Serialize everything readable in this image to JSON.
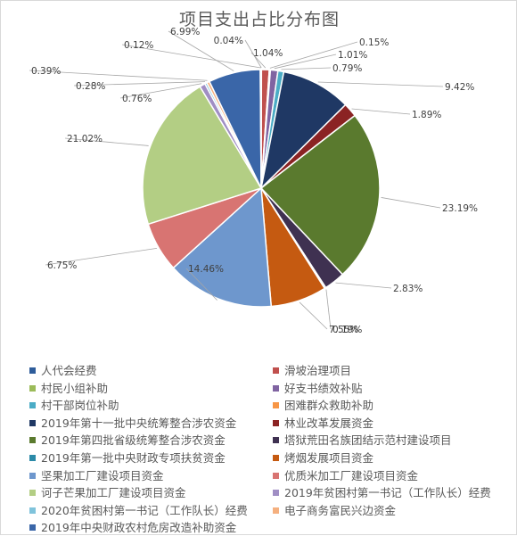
{
  "chart_data": {
    "type": "pie",
    "title": "项目支出占比分布图",
    "legend_position": "bottom",
    "slices": [
      {
        "label": "人代会经费",
        "value": 0.04,
        "pct_label": "0.04%",
        "color": "#2e5c9a"
      },
      {
        "label": "滑坡治理项目",
        "value": 1.04,
        "pct_label": "1.04%",
        "color": "#c0504d"
      },
      {
        "label": "村民小组补助",
        "value": 0.15,
        "pct_label": "0.15%",
        "color": "#9bbb59"
      },
      {
        "label": "好支书绩效补贴",
        "value": 1.01,
        "pct_label": "1.01%",
        "color": "#8064a2"
      },
      {
        "label": "村干部岗位补助",
        "value": 0.79,
        "pct_label": "0.79%",
        "color": "#4bacc6"
      },
      {
        "label": "困难群众救助补助",
        "value": 0.0,
        "pct_label": "",
        "color": "#f79646"
      },
      {
        "label": "2019年第十一批中央统筹整合涉农资金",
        "value": 9.42,
        "pct_label": "9.42%",
        "color": "#1f3864"
      },
      {
        "label": "林业改革发展资金",
        "value": 1.89,
        "pct_label": "1.89%",
        "color": "#8b2323"
      },
      {
        "label": "2019年第四批省级统筹整合涉农资金",
        "value": 23.19,
        "pct_label": "23.19%",
        "color": "#5a7a2e"
      },
      {
        "label": "塔狱荒田名族团结示范村建设项目",
        "value": 2.83,
        "pct_label": "2.83%",
        "color": "#3f3151"
      },
      {
        "label": "2019年第一批中央财政专项扶贫资金",
        "value": 0.19,
        "pct_label": "0.19%",
        "color": "#2b8aa8"
      },
      {
        "label": "烤烟发展项目资金",
        "value": 7.55,
        "pct_label": "7.55%",
        "color": "#c55a11"
      },
      {
        "label": "坚果加工厂建设项目资金",
        "value": 14.46,
        "pct_label": "14.46%",
        "color": "#6e97cd"
      },
      {
        "label": "优质米加工厂建设项目资金",
        "value": 6.75,
        "pct_label": "6.75%",
        "color": "#d87472"
      },
      {
        "label": "诃子芒果加工厂建设项目资金",
        "value": 21.02,
        "pct_label": "21.02%",
        "color": "#b3ce84"
      },
      {
        "label": "2019年贫困村第一书记（工作队长）经费",
        "value": 0.76,
        "pct_label": "0.76%",
        "color": "#a08ec4"
      },
      {
        "label": "2020年贫困村第一书记（工作队长）经费",
        "value": 0.28,
        "pct_label": "0.28%",
        "color": "#7fc3db"
      },
      {
        "label": "电子商务富民兴边资金",
        "value": 0.39,
        "pct_label": "0.39%",
        "color": "#f5b07f"
      },
      {
        "label": "2019年中央财政农村危房改造补助资金",
        "value": 6.99,
        "pct_label": "6.99%",
        "color": "#3a66a8"
      },
      {
        "label": "",
        "value": 0.12,
        "pct_label": "0.12%",
        "color": "#b33a36"
      }
    ]
  }
}
